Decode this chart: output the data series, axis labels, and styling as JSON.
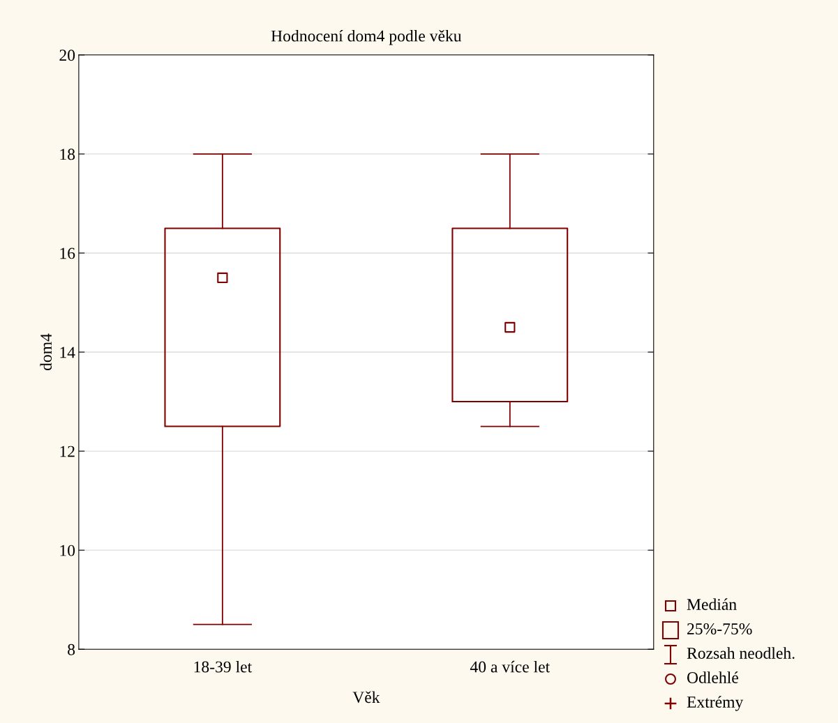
{
  "chart_data": {
    "type": "box",
    "title": "Hodnocení dom4 podle věku",
    "xlabel": "Věk",
    "ylabel": "dom4",
    "categories": [
      "18-39 let",
      "40 a více let"
    ],
    "series": [
      {
        "color": "#800000",
        "boxes": [
          {
            "low": 8.5,
            "q1": 12.5,
            "median": 15.5,
            "q3": 16.5,
            "high": 18
          },
          {
            "low": 12.5,
            "q1": 13,
            "median": 14.5,
            "q3": 16.5,
            "high": 18
          }
        ]
      }
    ],
    "ylim": [
      8,
      20
    ],
    "yticks": [
      8,
      10,
      12,
      14,
      16,
      18,
      20
    ],
    "grid": "y",
    "marker": "square",
    "annotations": [
      "Medián",
      "25%-75%",
      "Rozsah neodleh.",
      "Odlehlé",
      "Extrémy"
    ]
  }
}
